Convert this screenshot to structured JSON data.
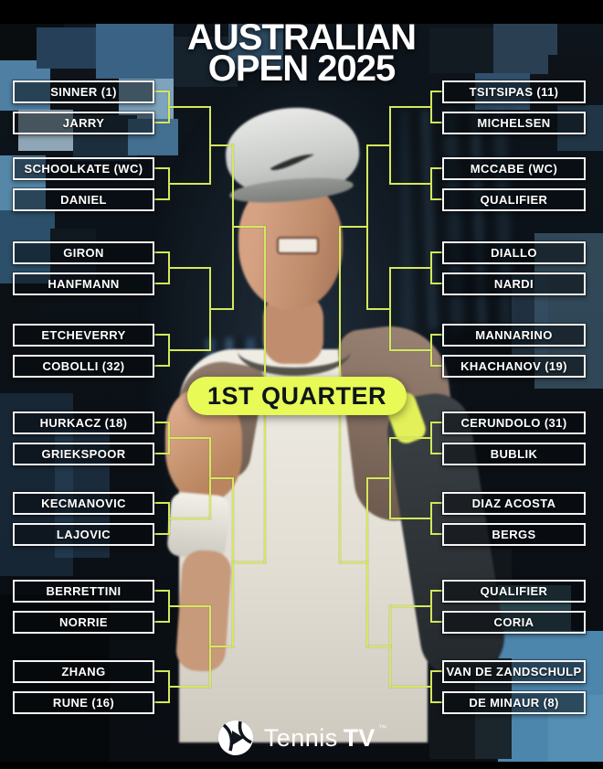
{
  "title": {
    "line1": "AUSTRALIAN",
    "line2": "OPEN 2025"
  },
  "badge": {
    "label": "1ST QUARTER"
  },
  "bracket": {
    "left": [
      {
        "name": "SINNER (1)"
      },
      {
        "name": "JARRY"
      },
      {
        "name": "SCHOOLKATE (WC)"
      },
      {
        "name": "DANIEL"
      },
      {
        "name": "GIRON"
      },
      {
        "name": "HANFMANN"
      },
      {
        "name": "ETCHEVERRY"
      },
      {
        "name": "COBOLLI (32)"
      },
      {
        "name": "HURKACZ (18)"
      },
      {
        "name": "GRIEKSPOOR"
      },
      {
        "name": "KECMANOVIC"
      },
      {
        "name": "LAJOVIC"
      },
      {
        "name": "BERRETTINI"
      },
      {
        "name": "NORRIE"
      },
      {
        "name": "ZHANG"
      },
      {
        "name": "RUNE (16)"
      }
    ],
    "right": [
      {
        "name": "TSITSIPAS (11)"
      },
      {
        "name": "MICHELSEN"
      },
      {
        "name": "MCCABE (WC)"
      },
      {
        "name": "QUALIFIER"
      },
      {
        "name": "DIALLO"
      },
      {
        "name": "NARDI"
      },
      {
        "name": "MANNARINO"
      },
      {
        "name": "KHACHANOV (19)"
      },
      {
        "name": "CERUNDOLO (31)"
      },
      {
        "name": "BUBLIK"
      },
      {
        "name": "DIAZ ACOSTA"
      },
      {
        "name": "BERGS"
      },
      {
        "name": "QUALIFIER"
      },
      {
        "name": "CORIA"
      },
      {
        "name": "VAN DE ZANDSCHULP"
      },
      {
        "name": "DE MINAUR (8)"
      }
    ]
  },
  "footer": {
    "brand_regular": "Tennis",
    "brand_bold": "TV",
    "trademark": "™",
    "logo_icon": "tennistv-ball-play-icon"
  },
  "colors": {
    "accent_line": "#d5e85e",
    "badge_bg": "#e7fa55",
    "badge_text": "#0e151c",
    "box_border": "#f5f5f5"
  }
}
